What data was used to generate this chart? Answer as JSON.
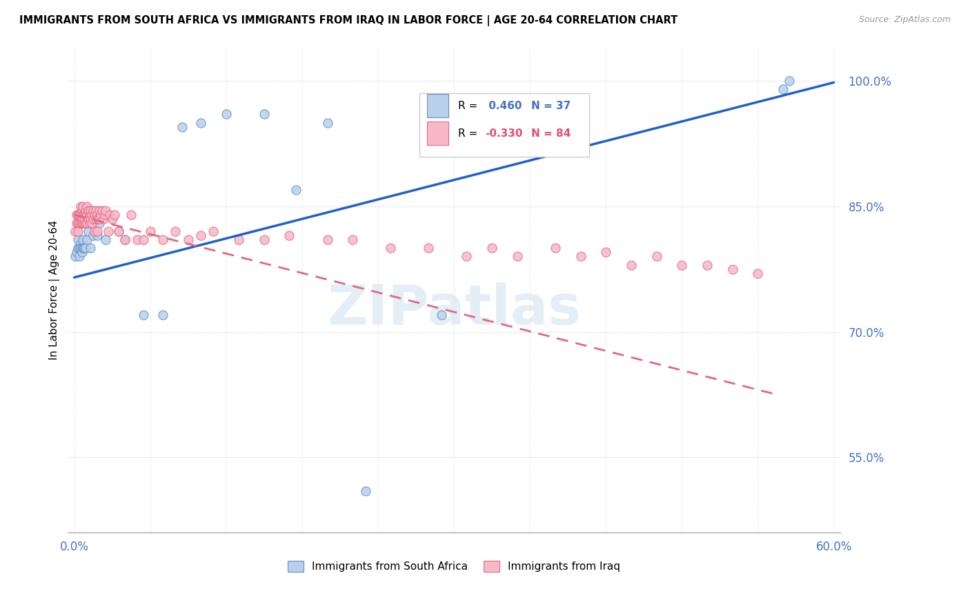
{
  "title": "IMMIGRANTS FROM SOUTH AFRICA VS IMMIGRANTS FROM IRAQ IN LABOR FORCE | AGE 20-64 CORRELATION CHART",
  "source": "Source: ZipAtlas.com",
  "ylabel": "In Labor Force | Age 20-64",
  "xlim": [
    -0.005,
    0.605
  ],
  "ylim": [
    0.46,
    1.04
  ],
  "xticks": [
    0.0,
    0.06,
    0.12,
    0.18,
    0.24,
    0.3,
    0.36,
    0.42,
    0.48,
    0.54,
    0.6
  ],
  "yticks_right": [
    0.55,
    0.7,
    0.85,
    1.0
  ],
  "ytick_right_labels": [
    "55.0%",
    "70.0%",
    "85.0%",
    "100.0%"
  ],
  "r_south_africa": 0.46,
  "n_south_africa": 37,
  "r_iraq": -0.33,
  "n_iraq": 84,
  "sa_color": "#b8d0ea",
  "iraq_color": "#f9b8c8",
  "sa_edge_color": "#6090c8",
  "iraq_edge_color": "#e06880",
  "sa_line_color": "#2060c8",
  "iraq_line_color": "#e06880",
  "legend_sa_color": "#4472c4",
  "legend_iraq_color": "#e05070",
  "watermark": "ZIPatlas",
  "sa_scatter_x": [
    0.001,
    0.002,
    0.003,
    0.003,
    0.004,
    0.004,
    0.005,
    0.005,
    0.006,
    0.006,
    0.007,
    0.007,
    0.008,
    0.008,
    0.009,
    0.01,
    0.011,
    0.012,
    0.013,
    0.015,
    0.018,
    0.02,
    0.025,
    0.035,
    0.04,
    0.055,
    0.07,
    0.085,
    0.1,
    0.12,
    0.15,
    0.175,
    0.2,
    0.23,
    0.29,
    0.56,
    0.565
  ],
  "sa_scatter_y": [
    0.79,
    0.795,
    0.8,
    0.81,
    0.8,
    0.79,
    0.805,
    0.8,
    0.8,
    0.795,
    0.8,
    0.81,
    0.8,
    0.8,
    0.8,
    0.81,
    0.82,
    0.835,
    0.8,
    0.815,
    0.815,
    0.83,
    0.81,
    0.82,
    0.81,
    0.72,
    0.72,
    0.945,
    0.95,
    0.96,
    0.96,
    0.87,
    0.95,
    0.51,
    0.72,
    0.99,
    1.0
  ],
  "iraq_scatter_x": [
    0.001,
    0.002,
    0.002,
    0.003,
    0.003,
    0.003,
    0.004,
    0.004,
    0.005,
    0.005,
    0.005,
    0.006,
    0.006,
    0.006,
    0.007,
    0.007,
    0.007,
    0.008,
    0.008,
    0.008,
    0.009,
    0.009,
    0.009,
    0.01,
    0.01,
    0.01,
    0.011,
    0.011,
    0.012,
    0.012,
    0.013,
    0.013,
    0.014,
    0.014,
    0.015,
    0.015,
    0.016,
    0.016,
    0.017,
    0.017,
    0.018,
    0.018,
    0.019,
    0.02,
    0.02,
    0.021,
    0.022,
    0.023,
    0.024,
    0.025,
    0.027,
    0.028,
    0.03,
    0.032,
    0.035,
    0.04,
    0.045,
    0.05,
    0.055,
    0.06,
    0.07,
    0.08,
    0.09,
    0.1,
    0.11,
    0.13,
    0.15,
    0.17,
    0.2,
    0.22,
    0.25,
    0.28,
    0.31,
    0.33,
    0.35,
    0.38,
    0.4,
    0.42,
    0.44,
    0.46,
    0.48,
    0.5,
    0.52,
    0.54
  ],
  "iraq_scatter_y": [
    0.82,
    0.83,
    0.84,
    0.83,
    0.84,
    0.82,
    0.83,
    0.84,
    0.83,
    0.84,
    0.85,
    0.83,
    0.835,
    0.845,
    0.83,
    0.84,
    0.85,
    0.83,
    0.84,
    0.835,
    0.83,
    0.84,
    0.845,
    0.83,
    0.84,
    0.85,
    0.835,
    0.845,
    0.83,
    0.84,
    0.835,
    0.845,
    0.83,
    0.84,
    0.835,
    0.845,
    0.84,
    0.82,
    0.835,
    0.845,
    0.84,
    0.82,
    0.835,
    0.835,
    0.845,
    0.84,
    0.845,
    0.835,
    0.84,
    0.845,
    0.82,
    0.84,
    0.835,
    0.84,
    0.82,
    0.81,
    0.84,
    0.81,
    0.81,
    0.82,
    0.81,
    0.82,
    0.81,
    0.815,
    0.82,
    0.81,
    0.81,
    0.815,
    0.81,
    0.81,
    0.8,
    0.8,
    0.79,
    0.8,
    0.79,
    0.8,
    0.79,
    0.795,
    0.78,
    0.79,
    0.78,
    0.78,
    0.775,
    0.77
  ]
}
